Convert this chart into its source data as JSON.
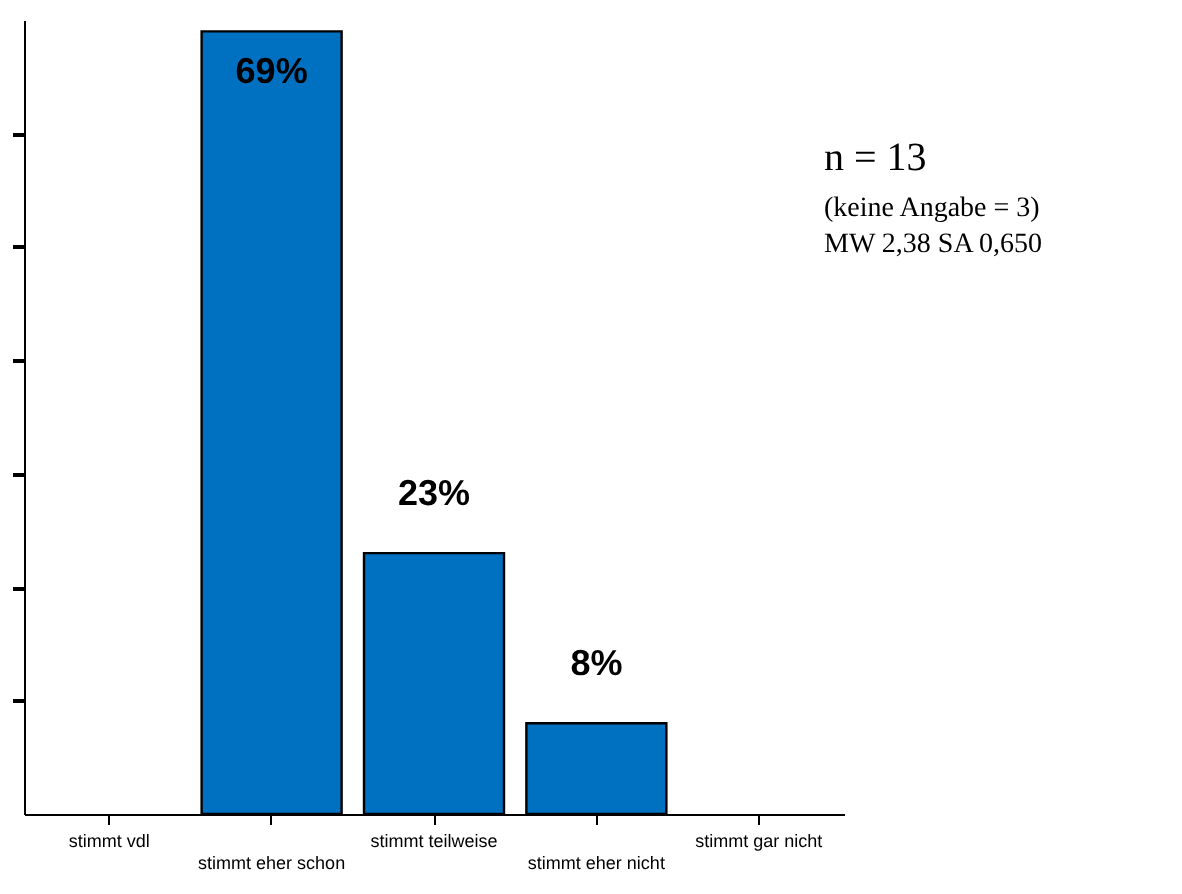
{
  "chart_data": {
    "type": "bar",
    "categories": [
      "stimmt vdl",
      "stimmt eher schon",
      "stimmt teilweise",
      "stimmt eher nicht",
      "stimmt gar nicht"
    ],
    "values": [
      0,
      69,
      23,
      8,
      0
    ],
    "value_labels": [
      null,
      "69%",
      "23%",
      "8%",
      null
    ],
    "color": "#0070c0",
    "ylim": [
      0,
      70
    ],
    "yticks": [
      {
        "value": 10,
        "label": null
      },
      {
        "value": 20,
        "label": null
      },
      {
        "value": 30,
        "label": null
      },
      {
        "value": 40,
        "label": null
      },
      {
        "value": 50,
        "label": null
      },
      {
        "value": 60,
        "label": null
      }
    ],
    "tick_labels": "x",
    "grid": false,
    "annotations": [
      "n = 13",
      "(keine Angabe = 3)",
      "MW 2,38 SA 0,650"
    ]
  }
}
